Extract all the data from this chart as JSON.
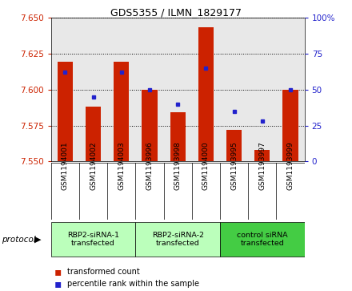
{
  "title": "GDS5355 / ILMN_1829177",
  "samples": [
    "GSM1194001",
    "GSM1194002",
    "GSM1194003",
    "GSM1193996",
    "GSM1193998",
    "GSM1194000",
    "GSM1193995",
    "GSM1193997",
    "GSM1193999"
  ],
  "red_values": [
    7.619,
    7.588,
    7.619,
    7.6,
    7.584,
    7.643,
    7.572,
    7.558,
    7.6
  ],
  "blue_values": [
    62,
    45,
    62,
    50,
    40,
    65,
    35,
    28,
    50
  ],
  "ylim": [
    7.55,
    7.65
  ],
  "y2lim": [
    0,
    100
  ],
  "yticks": [
    7.55,
    7.575,
    7.6,
    7.625,
    7.65
  ],
  "y2ticks": [
    0,
    25,
    50,
    75,
    100
  ],
  "groups": [
    {
      "label": "RBP2-siRNA-1\ntransfected",
      "start": 0,
      "end": 3,
      "color": "#bbffbb"
    },
    {
      "label": "RBP2-siRNA-2\ntransfected",
      "start": 3,
      "end": 6,
      "color": "#bbffbb"
    },
    {
      "label": "control siRNA\ntransfected",
      "start": 6,
      "end": 9,
      "color": "#44cc44"
    }
  ],
  "bar_color": "#cc2200",
  "dot_color": "#2222cc",
  "bar_width": 0.55,
  "plot_bg_color": "#e8e8e8",
  "sample_bg_color": "#d8d8d8",
  "legend_red": "transformed count",
  "legend_blue": "percentile rank within the sample",
  "left_tick_color": "#cc2200",
  "right_tick_color": "#2222cc"
}
